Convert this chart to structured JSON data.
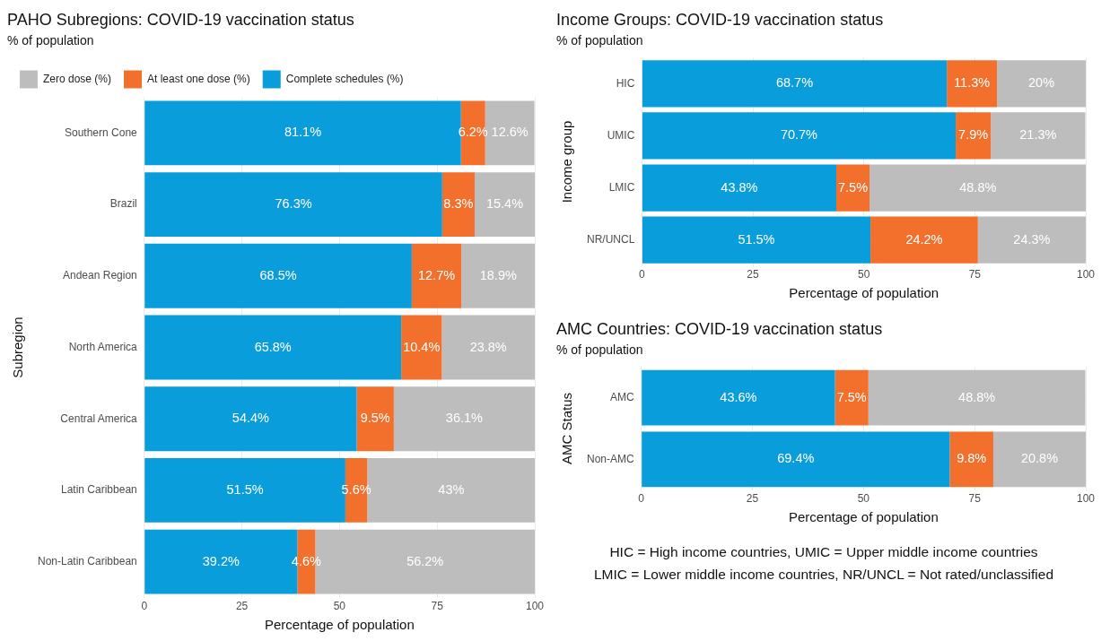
{
  "chart_data": [
    {
      "type": "bar",
      "orientation": "horizontal",
      "stacked": true,
      "title": "PAHO Subregions: COVID-19 vaccination status",
      "subtitle": "% of population",
      "xlabel": "Percentage of population",
      "ylabel": "Subregion",
      "categories": [
        "Southern Cone",
        "Brazil",
        "Andean Region",
        "North America",
        "Central America",
        "Latin Caribbean",
        "Non-Latin Caribbean"
      ],
      "xlim": [
        0,
        100
      ],
      "xticks": [
        0,
        25,
        50,
        75,
        100
      ],
      "grid": true,
      "legend": "top",
      "series": [
        {
          "name": "Complete schedules (%)",
          "color": "#0a9ddb",
          "values": [
            81.1,
            76.3,
            68.5,
            65.8,
            54.4,
            51.5,
            39.2
          ],
          "value_labels": [
            "81.1%",
            "76.3%",
            "68.5%",
            "65.8%",
            "54.4%",
            "51.5%",
            "39.2%"
          ]
        },
        {
          "name": "At least one dose (%)",
          "color": "#f26f2c",
          "values": [
            6.2,
            8.3,
            12.7,
            10.4,
            9.5,
            5.6,
            4.6
          ],
          "value_labels": [
            "6.2%",
            "8.3%",
            "12.7%",
            "10.4%",
            "9.5%",
            "5.6%",
            "4.6%"
          ]
        },
        {
          "name": "Zero dose (%)",
          "color": "#bdbdbd",
          "values": [
            12.6,
            15.4,
            18.9,
            23.8,
            36.1,
            43,
            56.2
          ],
          "value_labels": [
            "12.6%",
            "15.4%",
            "18.9%",
            "23.8%",
            "36.1%",
            "43%",
            "56.2%"
          ]
        }
      ]
    },
    {
      "type": "bar",
      "orientation": "horizontal",
      "stacked": true,
      "title": "Income Groups: COVID-19 vaccination status",
      "subtitle": "% of population",
      "xlabel": "Percentage of population",
      "ylabel": "Income group",
      "categories": [
        "HIC",
        "UMIC",
        "LMIC",
        "NR/UNCL"
      ],
      "xlim": [
        0,
        100
      ],
      "xticks": [
        0,
        25,
        50,
        75,
        100
      ],
      "grid": true,
      "series": [
        {
          "color": "#0a9ddb",
          "values": [
            68.7,
            70.7,
            43.8,
            51.5
          ],
          "value_labels": [
            "68.7%",
            "70.7%",
            "43.8%",
            "51.5%"
          ]
        },
        {
          "color": "#f26f2c",
          "values": [
            11.3,
            7.9,
            7.5,
            24.2
          ],
          "value_labels": [
            "11.3%",
            "7.9%",
            "7.5%",
            "24.2%"
          ]
        },
        {
          "color": "#bdbdbd",
          "values": [
            20,
            21.3,
            48.8,
            24.3
          ],
          "value_labels": [
            "20%",
            "21.3%",
            "48.8%",
            "24.3%"
          ]
        }
      ]
    },
    {
      "type": "bar",
      "orientation": "horizontal",
      "stacked": true,
      "title": "AMC Countries: COVID-19 vaccination status",
      "subtitle": "% of population",
      "xlabel": "Percentage of population",
      "ylabel": "AMC Status",
      "categories": [
        "AMC",
        "Non-AMC"
      ],
      "xlim": [
        0,
        100
      ],
      "xticks": [
        0,
        25,
        50,
        75,
        100
      ],
      "grid": true,
      "annotations": [
        "HIC = High income countries, UMIC = Upper middle income countries",
        "LMIC = Lower middle income countries, NR/UNCL = Not rated/unclassified"
      ],
      "series": [
        {
          "color": "#0a9ddb",
          "values": [
            43.6,
            69.4
          ],
          "value_labels": [
            "43.6%",
            "69.4%"
          ]
        },
        {
          "color": "#f26f2c",
          "values": [
            7.5,
            9.8
          ],
          "value_labels": [
            "7.5%",
            "9.8%"
          ]
        },
        {
          "color": "#bdbdbd",
          "values": [
            48.8,
            20.8
          ],
          "value_labels": [
            "48.8%",
            "20.8%"
          ]
        }
      ]
    }
  ]
}
